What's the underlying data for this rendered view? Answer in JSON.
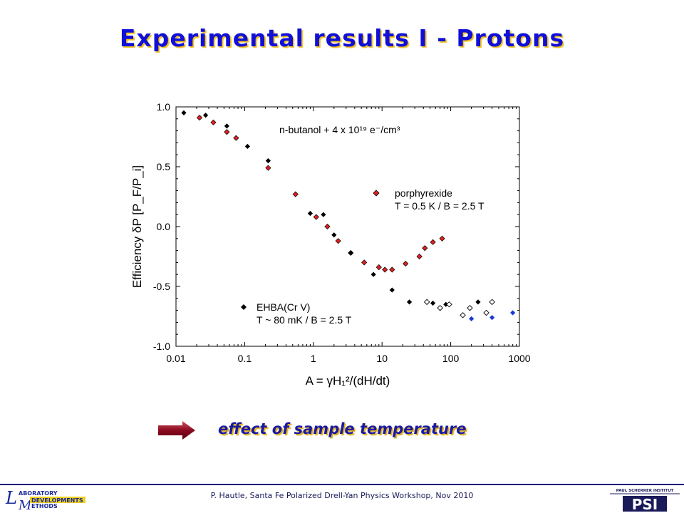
{
  "title": "Experimental results I - Protons",
  "caption": "effect of sample temperature",
  "footer": "P. Hautle, Santa Fe Polarized Drell-Yan Physics Workshop, Nov 2010",
  "logos": {
    "left": "Laboratory Developments and Methods",
    "right_top": "PAUL SCHERRER INSTITUT",
    "right_main": "PSI"
  },
  "colors": {
    "title": "#1010d8",
    "title_shadow": "#f0c020",
    "porphyrexide": "#e02020",
    "ehba": "#000000",
    "blue": "#1a3ad8"
  },
  "chart_data": {
    "type": "scatter",
    "x_scale": "log",
    "xlim": [
      0.01,
      1000
    ],
    "ylim": [
      -1.0,
      1.0
    ],
    "x_ticks": [
      "0.01",
      "0.1",
      "1",
      "10",
      "100",
      "1000"
    ],
    "y_ticks": [
      "-1.0",
      "-0.5",
      "0.0",
      "0.5",
      "1.0"
    ],
    "xlabel": "A = γH₁²/(dH/dt)",
    "ylabel": "Efficiency δP [P_F/P_i]",
    "annotation": "n-butanol + 4 x 10¹⁹ e⁻/cm³",
    "legend": [
      {
        "series": "porphyrexide",
        "line1": "porphyrexide",
        "line2": "T = 0.5 K / B = 2.5 T"
      },
      {
        "series": "ehba",
        "line1": "EHBA(Cr V)",
        "line2": "T ~ 80 mK / B = 2.5 T"
      }
    ],
    "series": [
      {
        "id": "porphyrexide",
        "marker": "diamond",
        "color": "#e02020",
        "x": [
          0.022,
          0.035,
          0.055,
          0.075,
          0.22,
          0.55,
          1.1,
          1.6,
          2.3,
          3.5,
          5.5,
          9,
          11,
          14,
          22,
          35,
          42,
          55,
          75
        ],
        "y": [
          0.91,
          0.87,
          0.79,
          0.74,
          0.49,
          0.27,
          0.08,
          0.0,
          -0.12,
          -0.22,
          -0.3,
          -0.34,
          -0.36,
          -0.36,
          -0.31,
          -0.25,
          -0.18,
          -0.13,
          -0.1
        ]
      },
      {
        "id": "ehba",
        "marker": "diamond",
        "color": "#000000",
        "x": [
          0.013,
          0.027,
          0.055,
          0.11,
          0.22,
          0.9,
          1.4,
          2.0,
          3.5,
          7.5,
          14,
          25,
          55,
          85,
          250
        ],
        "y": [
          0.95,
          0.93,
          0.84,
          0.67,
          0.55,
          0.11,
          0.1,
          -0.07,
          -0.22,
          -0.4,
          -0.53,
          -0.63,
          -0.64,
          -0.65,
          -0.63
        ]
      },
      {
        "id": "open",
        "marker": "open-diamond",
        "color": "#000000",
        "x": [
          45,
          70,
          95,
          150,
          190,
          330,
          400
        ],
        "y": [
          -0.63,
          -0.68,
          -0.65,
          -0.74,
          -0.68,
          -0.72,
          -0.63
        ]
      },
      {
        "id": "blue",
        "marker": "diamond",
        "color": "#1a3ad8",
        "x": [
          200,
          400,
          800
        ],
        "y": [
          -0.77,
          -0.76,
          -0.72
        ]
      }
    ]
  }
}
